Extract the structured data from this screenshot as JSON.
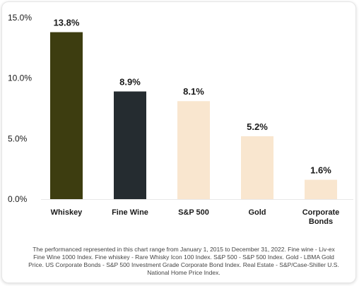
{
  "chart_data": {
    "type": "bar",
    "categories": [
      "Whiskey",
      "Fine Wine",
      "S&P 500",
      "Gold",
      "Corporate Bonds"
    ],
    "category_lines": [
      [
        "Whiskey"
      ],
      [
        "Fine Wine"
      ],
      [
        "S&P 500"
      ],
      [
        "Gold"
      ],
      [
        "Corporate",
        "Bonds"
      ]
    ],
    "values": [
      13.8,
      8.9,
      8.1,
      5.2,
      1.6
    ],
    "data_labels": [
      "13.8%",
      "8.9%",
      "8.1%",
      "5.2%",
      "1.6%"
    ],
    "bar_colors": [
      "#3d3d10",
      "#252c30",
      "#f9e6cf",
      "#f9e6cf",
      "#f9e6cf"
    ],
    "yticks": [
      0,
      5,
      10,
      15
    ],
    "ytick_labels": [
      "0.0%",
      "5.0%",
      "10.0%",
      "15.0%"
    ],
    "ylim": [
      0,
      15
    ],
    "grid": false,
    "xlabel": "",
    "ylabel": ""
  },
  "footnote": "The performanced represented in this chart range from January 1, 2015 to December 31, 2022. Fine wine - Liv-ex Fine Wine 1000 Index. Fine whiskey - Rare Whisky Icon 100 Index. S&P 500 - S&P 500 Index. Gold - LBMA Gold Price. US Corporate Bonds - S&P 500 Investment Grade Corporate Bond Index. Real Estate - S&P/Case-Shiller U.S. National Home Price Index."
}
